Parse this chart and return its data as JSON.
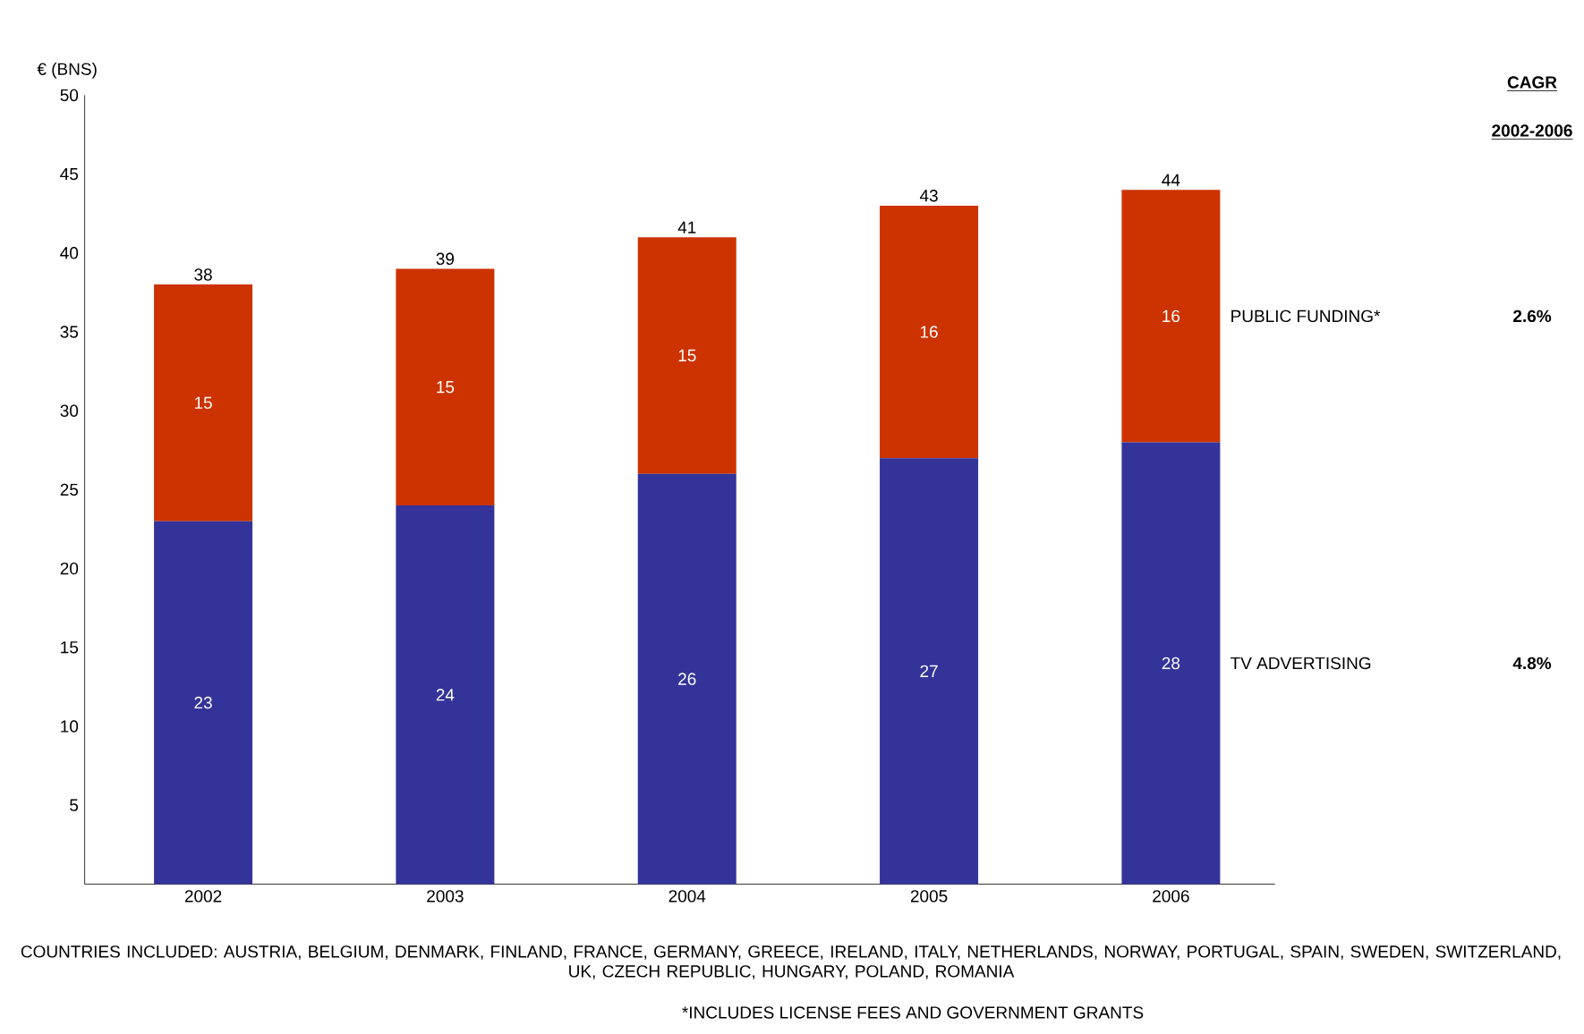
{
  "chart_data": {
    "type": "bar",
    "stacked": true,
    "ylabel": "€ (BNS)",
    "categories": [
      "2002",
      "2003",
      "2004",
      "2005",
      "2006"
    ],
    "series": [
      {
        "name": "TV ADVERTISING",
        "color": "#333399",
        "values": [
          23,
          24,
          26,
          27,
          28
        ]
      },
      {
        "name": "PUBLIC FUNDING*",
        "color": "#cc3300",
        "values": [
          15,
          15,
          15,
          16,
          16
        ]
      }
    ],
    "totals": [
      "38",
      "39",
      "41",
      "43",
      "44"
    ],
    "data_labels": true,
    "ylim": [
      0,
      50
    ],
    "yticks": [
      5,
      10,
      15,
      20,
      25,
      30,
      35,
      40,
      45,
      50
    ],
    "grid": false,
    "legend": false,
    "annotations": [
      "CAGR",
      "2002-2006",
      "4.8%",
      "2.6%",
      "COUNTRIES INCLUDED: AUSTRIA, BELGIUM, DENMARK, FINLAND, FRANCE, GERMANY, GREECE, IRELAND, ITALY, NETHERLANDS, NORWAY, PORTUGAL, SPAIN, SWEDEN, SWITZERLAND, UK, CZECH REPUBLIC, HUNGARY, POLAND, ROMANIA",
      "*INCLUDES LICENSE FEES AND GOVERNMENT GRANTS"
    ]
  }
}
